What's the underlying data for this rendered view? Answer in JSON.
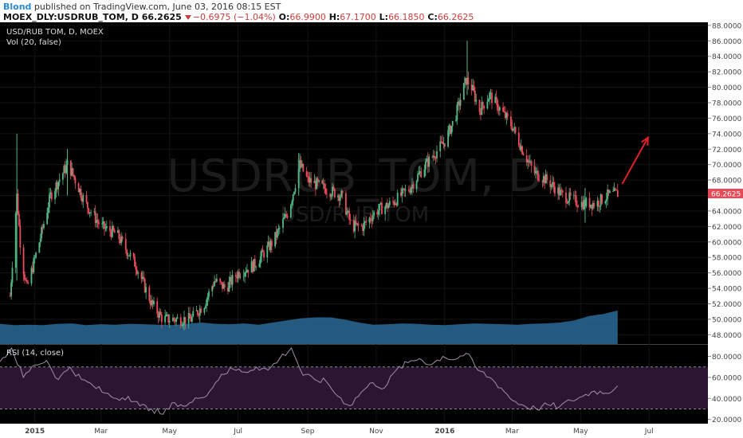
{
  "header": {
    "author": "Blond",
    "published": "published on TradingView.com, June 03, 2016 08:15 EST",
    "symbol": "MOEX_DLY:USDRUB_TOM, D",
    "last": "66.2625",
    "change": "−0.6975 (−1.04%)",
    "o_label": "O:",
    "o": "66.9900",
    "h_label": "H:",
    "h": "67.1700",
    "l_label": "L:",
    "l": "66.1850",
    "c_label": "C:",
    "c": "66.2625"
  },
  "legend": {
    "main": "USD/RUB TOM, D, MOEX",
    "vol": "Vol (20, false)",
    "rsi": "RSI (14, close)"
  },
  "watermark": {
    "symbol": "USDRUB_TOM, D",
    "desc": "USD/RUB TOM"
  },
  "colors": {
    "background": "#000000",
    "up_candle": "#53b987",
    "down_candle": "#eb4d5c",
    "volume_area": "#2a6a95",
    "rsi_line": "#9e8fa8",
    "rsi_band": "#2b1530",
    "arrow": "#e0202a",
    "price_badge": "#e84a58"
  },
  "chart_data": [
    {
      "type": "candlestick",
      "title": "USD/RUB TOM, D, MOEX",
      "x_tick_labels": [
        "2015",
        "Mar",
        "May",
        "Jul",
        "Sep",
        "Nov",
        "2016",
        "Mar",
        "May",
        "Jul"
      ],
      "y_tick_labels": [
        "48.0000",
        "50.0000",
        "52.0000",
        "54.0000",
        "56.0000",
        "58.0000",
        "60.0000",
        "62.0000",
        "64.0000",
        "66.0000",
        "68.0000",
        "70.0000",
        "72.0000",
        "74.0000",
        "76.0000",
        "78.0000",
        "80.0000",
        "82.0000",
        "84.0000",
        "86.0000",
        "88.0000"
      ],
      "ylim": [
        46.8,
        88.4
      ],
      "last_price_label": "66.2625",
      "last_price": 66.2625,
      "grid": true,
      "close_path": [
        [
          "2014-12-10",
          53
        ],
        [
          "2014-12-16",
          66
        ],
        [
          "2014-12-20",
          58
        ],
        [
          "2014-12-25",
          54
        ],
        [
          "2015-01-05",
          60
        ],
        [
          "2015-01-15",
          66
        ],
        [
          "2015-01-30",
          70
        ],
        [
          "2015-02-03",
          69
        ],
        [
          "2015-02-15",
          65
        ],
        [
          "2015-03-01",
          62
        ],
        [
          "2015-03-15",
          61
        ],
        [
          "2015-04-01",
          57
        ],
        [
          "2015-04-15",
          52
        ],
        [
          "2015-04-25",
          50
        ],
        [
          "2015-05-10",
          50
        ],
        [
          "2015-05-20",
          50
        ],
        [
          "2015-06-01",
          52
        ],
        [
          "2015-06-10",
          55
        ],
        [
          "2015-06-20",
          54
        ],
        [
          "2015-07-01",
          56
        ],
        [
          "2015-07-15",
          57
        ],
        [
          "2015-08-01",
          60
        ],
        [
          "2015-08-15",
          64
        ],
        [
          "2015-08-25",
          70
        ],
        [
          "2015-09-01",
          68
        ],
        [
          "2015-09-15",
          67
        ],
        [
          "2015-10-01",
          66
        ],
        [
          "2015-10-10",
          62
        ],
        [
          "2015-10-20",
          62
        ],
        [
          "2015-11-01",
          64
        ],
        [
          "2015-11-15",
          65
        ],
        [
          "2015-12-01",
          67
        ],
        [
          "2015-12-15",
          70
        ],
        [
          "2016-01-01",
          73
        ],
        [
          "2016-01-10",
          76
        ],
        [
          "2016-01-20",
          81
        ],
        [
          "2016-01-25",
          80
        ],
        [
          "2016-02-01",
          77
        ],
        [
          "2016-02-10",
          79
        ],
        [
          "2016-02-20",
          77
        ],
        [
          "2016-03-01",
          75
        ],
        [
          "2016-03-10",
          72
        ],
        [
          "2016-03-20",
          69
        ],
        [
          "2016-04-01",
          68
        ],
        [
          "2016-04-15",
          66
        ],
        [
          "2016-05-01",
          65
        ],
        [
          "2016-05-15",
          65
        ],
        [
          "2016-05-25",
          66
        ],
        [
          "2016-06-03",
          66.2625
        ]
      ],
      "spikes": [
        [
          "2014-12-16",
          74,
          55
        ],
        [
          "2015-01-30",
          72,
          66
        ],
        [
          "2015-08-24",
          71.5,
          66
        ],
        [
          "2016-01-21",
          86,
          79
        ],
        [
          "2016-05-05",
          67,
          62.5
        ]
      ],
      "projection_arrow": {
        "from": [
          "2016-06-07",
          67.5
        ],
        "to": [
          "2016-06-30",
          73.5
        ]
      }
    },
    {
      "type": "area",
      "title": "Vol (20, false)",
      "note": "volume area under price candles",
      "values_relative": [
        0.47,
        0.44,
        0.45,
        0.44,
        0.47,
        0.48,
        0.44,
        0.46,
        0.45,
        0.47,
        0.46,
        0.45,
        0.44,
        0.47,
        0.5,
        0.47,
        0.46,
        0.48,
        0.45,
        0.5,
        0.55,
        0.6,
        0.62,
        0.62,
        0.57,
        0.5,
        0.45,
        0.46,
        0.48,
        0.47,
        0.45,
        0.44,
        0.46,
        0.48,
        0.47,
        0.46,
        0.45,
        0.47,
        0.48,
        0.5,
        0.55,
        0.65,
        0.7,
        0.78
      ]
    },
    {
      "type": "line",
      "title": "RSI (14, close)",
      "y_tick_labels": [
        "20.0000",
        "40.0000",
        "60.0000",
        "80.0000"
      ],
      "ylim": [
        16,
        91
      ],
      "bands": [
        30,
        70
      ],
      "values": [
        [
          0,
          75
        ],
        [
          1,
          88
        ],
        [
          2,
          60
        ],
        [
          3,
          72
        ],
        [
          4,
          76
        ],
        [
          5,
          58
        ],
        [
          6,
          70
        ],
        [
          7,
          58
        ],
        [
          8,
          52
        ],
        [
          9,
          45
        ],
        [
          10,
          40
        ],
        [
          11,
          42
        ],
        [
          12,
          33
        ],
        [
          13,
          30
        ],
        [
          14,
          25
        ],
        [
          15,
          36
        ],
        [
          16,
          33
        ],
        [
          17,
          40
        ],
        [
          18,
          47
        ],
        [
          19,
          63
        ],
        [
          20,
          68
        ],
        [
          21,
          65
        ],
        [
          22,
          70
        ],
        [
          23,
          67
        ],
        [
          24,
          78
        ],
        [
          25,
          88
        ],
        [
          26,
          62
        ],
        [
          27,
          58
        ],
        [
          28,
          56
        ],
        [
          29,
          42
        ],
        [
          30,
          33
        ],
        [
          31,
          46
        ],
        [
          32,
          55
        ],
        [
          33,
          50
        ],
        [
          34,
          67
        ],
        [
          35,
          74
        ],
        [
          36,
          78
        ],
        [
          37,
          72
        ],
        [
          38,
          80
        ],
        [
          39,
          77
        ],
        [
          40,
          83
        ],
        [
          41,
          67
        ],
        [
          42,
          60
        ],
        [
          43,
          50
        ],
        [
          44,
          38
        ],
        [
          45,
          33
        ],
        [
          46,
          30
        ],
        [
          47,
          34
        ],
        [
          48,
          32
        ],
        [
          49,
          38
        ],
        [
          50,
          42
        ],
        [
          51,
          47
        ],
        [
          52,
          45
        ],
        [
          53,
          52
        ]
      ]
    }
  ]
}
